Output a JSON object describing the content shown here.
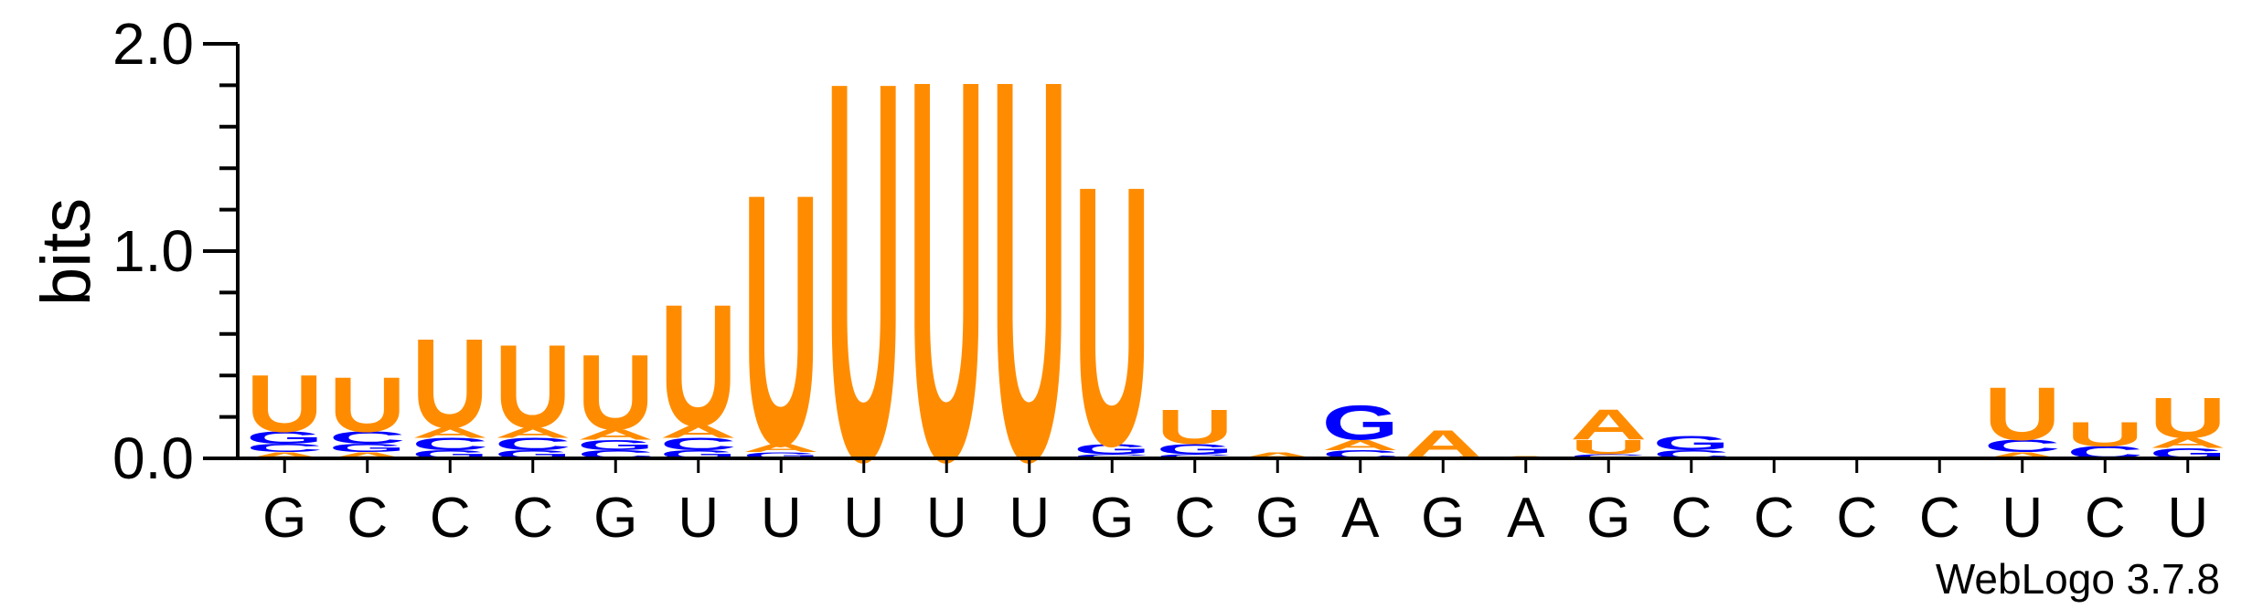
{
  "chart_data": {
    "type": "sequence-logo",
    "ylabel": "bits",
    "ylim": [
      0,
      2.0
    ],
    "yticks": [
      "0.0",
      "1.0",
      "2.0"
    ],
    "colors": {
      "A": "#ff8c00",
      "U": "#ff8c00",
      "G": "#0000ff",
      "C": "#0000ff"
    },
    "consensus": [
      "G",
      "C",
      "C",
      "C",
      "G",
      "U",
      "U",
      "U",
      "U",
      "U",
      "G",
      "C",
      "G",
      "A",
      "G",
      "A",
      "G",
      "C",
      "C",
      "C",
      "C",
      "U",
      "C",
      "U"
    ],
    "positions": [
      {
        "stack": [
          [
            "A",
            0.03
          ],
          [
            "C",
            0.04
          ],
          [
            "G",
            0.06
          ],
          [
            "U",
            0.28
          ]
        ]
      },
      {
        "stack": [
          [
            "A",
            0.03
          ],
          [
            "G",
            0.04
          ],
          [
            "C",
            0.06
          ],
          [
            "U",
            0.27
          ]
        ]
      },
      {
        "stack": [
          [
            "G",
            0.04
          ],
          [
            "C",
            0.06
          ],
          [
            "A",
            0.05
          ],
          [
            "U",
            0.44
          ]
        ]
      },
      {
        "stack": [
          [
            "G",
            0.04
          ],
          [
            "C",
            0.06
          ],
          [
            "A",
            0.05
          ],
          [
            "U",
            0.41
          ]
        ]
      },
      {
        "stack": [
          [
            "C",
            0.04
          ],
          [
            "G",
            0.05
          ],
          [
            "A",
            0.05
          ],
          [
            "U",
            0.37
          ]
        ]
      },
      {
        "stack": [
          [
            "G",
            0.04
          ],
          [
            "C",
            0.06
          ],
          [
            "A",
            0.06
          ],
          [
            "U",
            0.6
          ]
        ]
      },
      {
        "stack": [
          [
            "G",
            0.03
          ],
          [
            "A",
            0.04
          ],
          [
            "U",
            1.24
          ]
        ]
      },
      {
        "stack": [
          [
            "U",
            1.87
          ]
        ]
      },
      {
        "stack": [
          [
            "U",
            1.88
          ]
        ]
      },
      {
        "stack": [
          [
            "U",
            1.88
          ]
        ]
      },
      {
        "stack": [
          [
            "C",
            0.02
          ],
          [
            "G",
            0.05
          ],
          [
            "U",
            1.28
          ]
        ]
      },
      {
        "stack": [
          [
            "C",
            0.02
          ],
          [
            "G",
            0.05
          ],
          [
            "U",
            0.17
          ]
        ]
      },
      {
        "stack": [
          [
            "A",
            0.03
          ]
        ]
      },
      {
        "stack": [
          [
            "C",
            0.04
          ],
          [
            "A",
            0.05
          ],
          [
            "G",
            0.17
          ]
        ]
      },
      {
        "stack": [
          [
            "U",
            0.01
          ],
          [
            "A",
            0.13
          ]
        ]
      },
      {
        "stack": [
          [
            "A",
            0.01
          ]
        ]
      },
      {
        "stack": [
          [
            "C",
            0.02
          ],
          [
            "U",
            0.07
          ],
          [
            "A",
            0.15
          ]
        ]
      },
      {
        "stack": [
          [
            "C",
            0.04
          ],
          [
            "G",
            0.07
          ]
        ]
      },
      {
        "stack": []
      },
      {
        "stack": []
      },
      {
        "stack": []
      },
      {
        "stack": [
          [
            "A",
            0.03
          ],
          [
            "C",
            0.06
          ],
          [
            "U",
            0.26
          ]
        ]
      },
      {
        "stack": [
          [
            "C",
            0.06
          ],
          [
            "U",
            0.12
          ]
        ]
      },
      {
        "stack": [
          [
            "G",
            0.05
          ],
          [
            "A",
            0.05
          ],
          [
            "U",
            0.2
          ]
        ]
      }
    ],
    "footer": "WebLogo 3.7.8"
  }
}
